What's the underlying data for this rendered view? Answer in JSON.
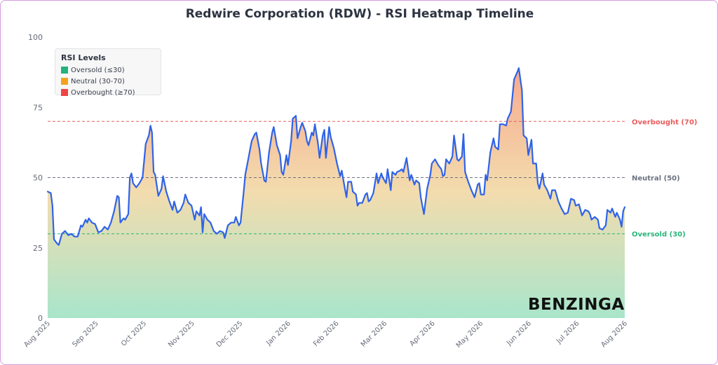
{
  "chart_data": {
    "type": "area",
    "title": "Redwire Corporation (RDW) - RSI Heatmap Timeline",
    "xlabel": "",
    "ylabel": "",
    "ylim": [
      0,
      100
    ],
    "yticks": [
      "0",
      "25",
      "50",
      "75",
      "100"
    ],
    "grid": false,
    "x_tick_labels": [
      "Aug 2025",
      "Sep 2025",
      "Oct 2025",
      "Nov 2025",
      "Dec 2025",
      "Jan 2026",
      "Feb 2026",
      "Mar 2026",
      "Apr 2026",
      "May 2026",
      "Jun 2026",
      "Jul 2026",
      "Aug 2026"
    ],
    "x_range": [
      "2025-08-01",
      "2026-08-01"
    ],
    "series": [
      {
        "color": "#2f63e8",
        "points": [
          [
            "2025-08-01",
            45
          ],
          [
            "2025-08-03",
            44.5
          ],
          [
            "2025-08-04",
            40
          ],
          [
            "2025-08-05",
            28
          ],
          [
            "2025-08-07",
            26.5
          ],
          [
            "2025-08-08",
            26
          ],
          [
            "2025-08-10",
            30
          ],
          [
            "2025-08-12",
            31
          ],
          [
            "2025-08-14",
            29.5
          ],
          [
            "2025-08-16",
            30
          ],
          [
            "2025-08-18",
            29
          ],
          [
            "2025-08-20",
            29
          ],
          [
            "2025-08-22",
            33
          ],
          [
            "2025-08-23",
            32.5
          ],
          [
            "2025-08-25",
            35
          ],
          [
            "2025-08-26",
            34
          ],
          [
            "2025-08-27",
            35.5
          ],
          [
            "2025-08-29",
            34
          ],
          [
            "2025-08-31",
            33.5
          ],
          [
            "2025-09-02",
            30.5
          ],
          [
            "2025-09-04",
            31
          ],
          [
            "2025-09-06",
            32.5
          ],
          [
            "2025-09-08",
            31.5
          ],
          [
            "2025-09-10",
            34
          ],
          [
            "2025-09-12",
            38
          ],
          [
            "2025-09-14",
            43.5
          ],
          [
            "2025-09-15",
            43
          ],
          [
            "2025-09-16",
            34
          ],
          [
            "2025-09-18",
            35.5
          ],
          [
            "2025-09-19",
            35
          ],
          [
            "2025-09-21",
            37
          ],
          [
            "2025-09-22",
            50
          ],
          [
            "2025-09-23",
            51.5
          ],
          [
            "2025-09-24",
            48
          ],
          [
            "2025-09-26",
            46.5
          ],
          [
            "2025-09-28",
            48
          ],
          [
            "2025-09-30",
            50
          ],
          [
            "2025-10-02",
            62
          ],
          [
            "2025-10-04",
            65
          ],
          [
            "2025-10-05",
            68.5
          ],
          [
            "2025-10-06",
            66
          ],
          [
            "2025-10-07",
            52
          ],
          [
            "2025-10-08",
            51
          ],
          [
            "2025-10-10",
            43.5
          ],
          [
            "2025-10-12",
            46
          ],
          [
            "2025-10-13",
            50.5
          ],
          [
            "2025-10-15",
            45
          ],
          [
            "2025-10-17",
            41.5
          ],
          [
            "2025-10-19",
            38.5
          ],
          [
            "2025-10-20",
            41.5
          ],
          [
            "2025-10-22",
            37.5
          ],
          [
            "2025-10-24",
            38.5
          ],
          [
            "2025-10-26",
            41
          ],
          [
            "2025-10-27",
            44
          ],
          [
            "2025-10-29",
            41
          ],
          [
            "2025-10-31",
            40
          ],
          [
            "2025-11-02",
            35
          ],
          [
            "2025-11-03",
            38
          ],
          [
            "2025-11-05",
            36.5
          ],
          [
            "2025-11-06",
            39.5
          ],
          [
            "2025-11-07",
            30.5
          ],
          [
            "2025-11-08",
            37
          ],
          [
            "2025-11-10",
            35
          ],
          [
            "2025-11-12",
            34
          ],
          [
            "2025-11-14",
            31
          ],
          [
            "2025-11-16",
            30
          ],
          [
            "2025-11-18",
            31
          ],
          [
            "2025-11-20",
            30.5
          ],
          [
            "2025-11-21",
            28.5
          ],
          [
            "2025-11-23",
            33
          ],
          [
            "2025-11-25",
            34
          ],
          [
            "2025-11-27",
            34
          ],
          [
            "2025-11-28",
            36
          ],
          [
            "2025-11-30",
            33
          ],
          [
            "2025-12-01",
            34
          ],
          [
            "2025-12-03",
            45
          ],
          [
            "2025-12-04",
            51
          ],
          [
            "2025-12-06",
            57
          ],
          [
            "2025-12-08",
            63
          ],
          [
            "2025-12-10",
            65.5
          ],
          [
            "2025-12-11",
            66
          ],
          [
            "2025-12-13",
            60
          ],
          [
            "2025-12-14",
            55
          ],
          [
            "2025-12-16",
            49
          ],
          [
            "2025-12-17",
            48.5
          ],
          [
            "2025-12-19",
            59
          ],
          [
            "2025-12-21",
            66
          ],
          [
            "2025-12-22",
            68
          ],
          [
            "2025-12-24",
            61.5
          ],
          [
            "2025-12-26",
            58
          ],
          [
            "2025-12-27",
            52
          ],
          [
            "2025-12-28",
            51
          ],
          [
            "2025-12-30",
            58
          ],
          [
            "2025-12-31",
            54.5
          ],
          [
            "2026-01-02",
            63
          ],
          [
            "2026-01-03",
            71
          ],
          [
            "2026-01-05",
            72
          ],
          [
            "2026-01-06",
            64
          ],
          [
            "2026-01-08",
            68
          ],
          [
            "2026-01-09",
            69.5
          ],
          [
            "2026-01-11",
            66.5
          ],
          [
            "2026-01-12",
            63
          ],
          [
            "2026-01-13",
            61.5
          ],
          [
            "2026-01-15",
            66
          ],
          [
            "2026-01-16",
            65
          ],
          [
            "2026-01-17",
            69
          ],
          [
            "2026-01-19",
            62
          ],
          [
            "2026-01-20",
            57
          ],
          [
            "2026-01-22",
            65
          ],
          [
            "2026-01-23",
            67
          ],
          [
            "2026-01-24",
            57
          ],
          [
            "2026-01-26",
            68
          ],
          [
            "2026-01-27",
            64.5
          ],
          [
            "2026-01-29",
            60.5
          ],
          [
            "2026-01-31",
            55
          ],
          [
            "2026-02-02",
            50.5
          ],
          [
            "2026-02-03",
            52.5
          ],
          [
            "2026-02-05",
            46
          ],
          [
            "2026-02-06",
            43
          ],
          [
            "2026-02-07",
            48.5
          ],
          [
            "2026-02-09",
            48.5
          ],
          [
            "2026-02-10",
            45
          ],
          [
            "2026-02-12",
            44
          ],
          [
            "2026-02-13",
            40
          ],
          [
            "2026-02-14",
            41
          ],
          [
            "2026-02-16",
            41
          ],
          [
            "2026-02-18",
            44
          ],
          [
            "2026-02-19",
            44.5
          ],
          [
            "2026-02-20",
            41.5
          ],
          [
            "2026-02-21",
            42
          ],
          [
            "2026-02-23",
            44.5
          ],
          [
            "2026-02-25",
            51.5
          ],
          [
            "2026-02-26",
            48
          ],
          [
            "2026-02-28",
            51.5
          ],
          [
            "2026-03-01",
            50
          ],
          [
            "2026-03-03",
            48
          ],
          [
            "2026-03-04",
            53
          ],
          [
            "2026-03-06",
            45.5
          ],
          [
            "2026-03-07",
            52
          ],
          [
            "2026-03-09",
            51
          ],
          [
            "2026-03-10",
            52
          ],
          [
            "2026-03-12",
            52.5
          ],
          [
            "2026-03-13",
            53
          ],
          [
            "2026-03-14",
            52
          ],
          [
            "2026-03-16",
            57
          ],
          [
            "2026-03-18",
            49
          ],
          [
            "2026-03-19",
            51
          ],
          [
            "2026-03-21",
            47.5
          ],
          [
            "2026-03-22",
            49
          ],
          [
            "2026-03-24",
            48
          ],
          [
            "2026-03-25",
            43
          ],
          [
            "2026-03-27",
            37
          ],
          [
            "2026-03-29",
            46
          ],
          [
            "2026-03-31",
            51
          ],
          [
            "2026-04-01",
            55
          ],
          [
            "2026-04-03",
            56.5
          ],
          [
            "2026-04-05",
            54.5
          ],
          [
            "2026-04-07",
            53
          ],
          [
            "2026-04-08",
            50.5
          ],
          [
            "2026-04-09",
            51
          ],
          [
            "2026-04-10",
            56.5
          ],
          [
            "2026-04-12",
            55
          ],
          [
            "2026-04-14",
            57.5
          ],
          [
            "2026-04-15",
            65
          ],
          [
            "2026-04-17",
            56.5
          ],
          [
            "2026-04-18",
            56
          ],
          [
            "2026-04-20",
            57.5
          ],
          [
            "2026-04-21",
            65.5
          ],
          [
            "2026-04-22",
            52
          ],
          [
            "2026-04-24",
            48.5
          ],
          [
            "2026-04-26",
            45.5
          ],
          [
            "2026-04-28",
            43
          ],
          [
            "2026-04-30",
            47.5
          ],
          [
            "2026-05-01",
            48
          ],
          [
            "2026-05-02",
            44
          ],
          [
            "2026-05-04",
            44
          ],
          [
            "2026-05-05",
            51
          ],
          [
            "2026-05-06",
            49
          ],
          [
            "2026-05-08",
            59
          ],
          [
            "2026-05-10",
            64
          ],
          [
            "2026-05-11",
            61
          ],
          [
            "2026-05-13",
            60
          ],
          [
            "2026-05-14",
            69
          ],
          [
            "2026-05-16",
            69
          ],
          [
            "2026-05-18",
            68.5
          ],
          [
            "2026-05-19",
            71
          ],
          [
            "2026-05-21",
            73.5
          ],
          [
            "2026-05-23",
            85
          ],
          [
            "2026-05-25",
            87.5
          ],
          [
            "2026-05-26",
            89
          ],
          [
            "2026-05-28",
            81
          ],
          [
            "2026-05-29",
            65
          ],
          [
            "2026-05-31",
            64
          ],
          [
            "2026-06-01",
            58
          ],
          [
            "2026-06-03",
            63.5
          ],
          [
            "2026-06-04",
            55
          ],
          [
            "2026-06-06",
            55
          ],
          [
            "2026-06-07",
            48
          ],
          [
            "2026-06-08",
            46
          ],
          [
            "2026-06-10",
            51.5
          ],
          [
            "2026-06-11",
            47.5
          ],
          [
            "2026-06-13",
            45.5
          ],
          [
            "2026-06-15",
            42.5
          ],
          [
            "2026-06-16",
            45.5
          ],
          [
            "2026-06-18",
            45.5
          ],
          [
            "2026-06-20",
            41.5
          ],
          [
            "2026-06-22",
            39
          ],
          [
            "2026-06-24",
            37
          ],
          [
            "2026-06-26",
            37.5
          ],
          [
            "2026-06-28",
            42.5
          ],
          [
            "2026-06-30",
            42
          ],
          [
            "2026-07-01",
            40
          ],
          [
            "2026-07-03",
            40.5
          ],
          [
            "2026-07-05",
            36.5
          ],
          [
            "2026-07-07",
            38.5
          ],
          [
            "2026-07-09",
            38
          ],
          [
            "2026-07-10",
            37
          ],
          [
            "2026-07-11",
            35
          ],
          [
            "2026-07-13",
            36
          ],
          [
            "2026-07-15",
            35
          ],
          [
            "2026-07-16",
            32
          ],
          [
            "2026-07-18",
            31.5
          ],
          [
            "2026-07-20",
            33
          ],
          [
            "2026-07-21",
            38.5
          ],
          [
            "2026-07-23",
            37.5
          ],
          [
            "2026-07-24",
            39
          ],
          [
            "2026-07-26",
            36
          ],
          [
            "2026-07-27",
            37.5
          ],
          [
            "2026-07-29",
            35
          ],
          [
            "2026-07-30",
            32.5
          ],
          [
            "2026-07-31",
            38
          ],
          [
            "2026-08-02",
            39.5
          ]
        ]
      }
    ],
    "reference_lines": [
      {
        "value": 70,
        "label": "Overbought (70)",
        "color": "#e85c5c"
      },
      {
        "value": 50,
        "label": "Neutral (50)",
        "color": "#6b7280"
      },
      {
        "value": 30,
        "label": "Oversold (30)",
        "color": "#2bb47a"
      }
    ],
    "legend": {
      "placement": "top-left",
      "title": "RSI Levels",
      "items": [
        {
          "label": "Oversold (≤30)",
          "color": "#23b27c"
        },
        {
          "label": "Neutral (30-70)",
          "color": "#f4a21c"
        },
        {
          "label": "Overbought (≥70)",
          "color": "#ef4444"
        }
      ]
    },
    "fill_gradient": {
      "top": "#f7a88d",
      "middle": "#f3dcae",
      "bottom": "#a9e5cb"
    }
  },
  "watermark": "BENZINGA"
}
